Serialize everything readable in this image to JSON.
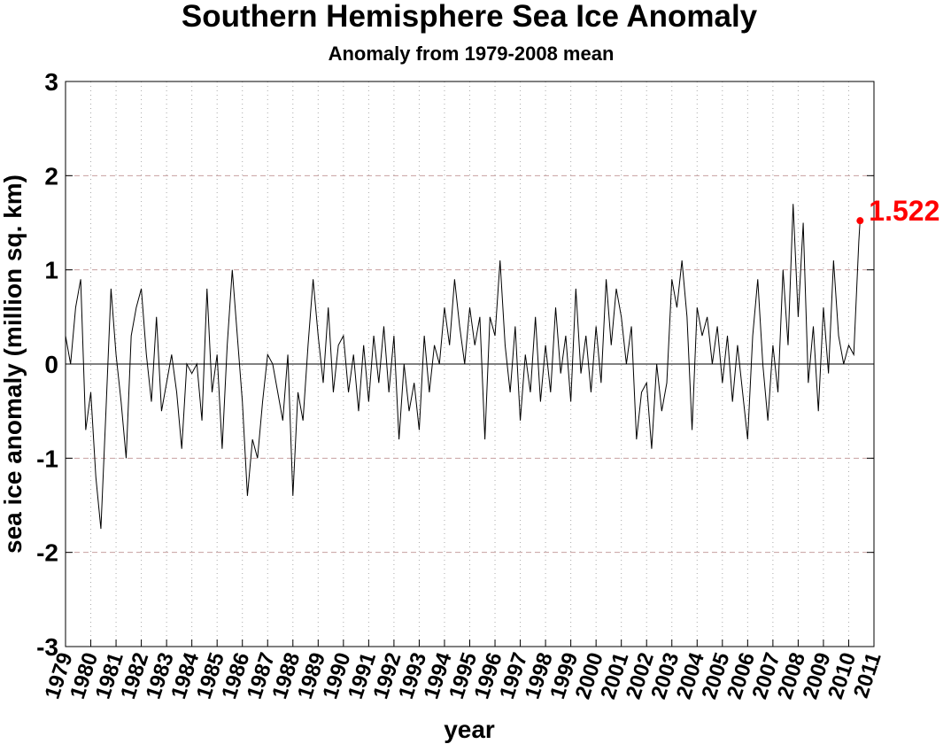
{
  "chart_data": {
    "type": "line",
    "title": "Southern Hemisphere Sea Ice Anomaly",
    "subtitle": "Anomaly from 1979-2008 mean",
    "xlabel": "year",
    "ylabel": "sea ice anomaly (million sq. km)",
    "xlim": [
      1979,
      2011
    ],
    "xticks": [
      1979,
      1980,
      1981,
      1982,
      1983,
      1984,
      1985,
      1986,
      1987,
      1988,
      1989,
      1990,
      1991,
      1992,
      1993,
      1994,
      1995,
      1996,
      1997,
      1998,
      1999,
      2000,
      2001,
      2002,
      2003,
      2004,
      2005,
      2006,
      2007,
      2008,
      2009,
      2010,
      2011
    ],
    "ylim": [
      -3,
      3
    ],
    "yticks": [
      -3,
      -2,
      -1,
      0,
      1,
      2,
      3
    ],
    "grid": true,
    "color": "#000000",
    "annotation_color": "#ff0000",
    "annotation": "1.522",
    "x": [
      1979.0,
      1979.2,
      1979.4,
      1979.6,
      1979.8,
      1980.0,
      1980.2,
      1980.4,
      1980.6,
      1980.8,
      1981.0,
      1981.2,
      1981.4,
      1981.6,
      1981.8,
      1982.0,
      1982.2,
      1982.4,
      1982.6,
      1982.8,
      1983.0,
      1983.2,
      1983.4,
      1983.6,
      1983.8,
      1984.0,
      1984.2,
      1984.4,
      1984.6,
      1984.8,
      1985.0,
      1985.2,
      1985.4,
      1985.6,
      1985.8,
      1986.0,
      1986.2,
      1986.4,
      1986.6,
      1986.8,
      1987.0,
      1987.2,
      1987.4,
      1987.6,
      1987.8,
      1988.0,
      1988.2,
      1988.4,
      1988.6,
      1988.8,
      1989.0,
      1989.2,
      1989.4,
      1989.6,
      1989.8,
      1990.0,
      1990.2,
      1990.4,
      1990.6,
      1990.8,
      1991.0,
      1991.2,
      1991.4,
      1991.6,
      1991.8,
      1992.0,
      1992.2,
      1992.4,
      1992.6,
      1992.8,
      1993.0,
      1993.2,
      1993.4,
      1993.6,
      1993.8,
      1994.0,
      1994.2,
      1994.4,
      1994.6,
      1994.8,
      1995.0,
      1995.2,
      1995.4,
      1995.6,
      1995.8,
      1996.0,
      1996.2,
      1996.4,
      1996.6,
      1996.8,
      1997.0,
      1997.2,
      1997.4,
      1997.6,
      1997.8,
      1998.0,
      1998.2,
      1998.4,
      1998.6,
      1998.8,
      1999.0,
      1999.2,
      1999.4,
      1999.6,
      1999.8,
      2000.0,
      2000.2,
      2000.4,
      2000.6,
      2000.8,
      2001.0,
      2001.2,
      2001.4,
      2001.6,
      2001.8,
      2002.0,
      2002.2,
      2002.4,
      2002.6,
      2002.8,
      2003.0,
      2003.2,
      2003.4,
      2003.6,
      2003.8,
      2004.0,
      2004.2,
      2004.4,
      2004.6,
      2004.8,
      2005.0,
      2005.2,
      2005.4,
      2005.6,
      2005.8,
      2006.0,
      2006.2,
      2006.4,
      2006.6,
      2006.8,
      2007.0,
      2007.2,
      2007.4,
      2007.6,
      2007.8,
      2008.0,
      2008.2,
      2008.4,
      2008.6,
      2008.8,
      2009.0,
      2009.2,
      2009.4,
      2009.6,
      2009.8,
      2010.0,
      2010.2,
      2010.4,
      2010.45
    ],
    "values": [
      0.3,
      0.0,
      0.6,
      0.9,
      -0.7,
      -0.3,
      -1.2,
      -1.75,
      -0.5,
      0.8,
      0.1,
      -0.4,
      -1.0,
      0.3,
      0.6,
      0.8,
      0.1,
      -0.4,
      0.5,
      -0.5,
      -0.2,
      0.1,
      -0.3,
      -0.9,
      0.0,
      -0.1,
      0.0,
      -0.6,
      0.8,
      -0.3,
      0.1,
      -0.9,
      0.2,
      1.0,
      0.3,
      -0.4,
      -1.4,
      -0.8,
      -1.0,
      -0.4,
      0.1,
      0.0,
      -0.3,
      -0.6,
      0.1,
      -1.4,
      -0.3,
      -0.6,
      0.2,
      0.9,
      0.3,
      -0.2,
      0.6,
      -0.3,
      0.2,
      0.3,
      -0.3,
      0.1,
      -0.5,
      0.2,
      -0.4,
      0.3,
      -0.2,
      0.4,
      -0.3,
      0.3,
      -0.8,
      0.0,
      -0.5,
      -0.2,
      -0.7,
      0.3,
      -0.3,
      0.2,
      0.0,
      0.6,
      0.2,
      0.9,
      0.4,
      0.0,
      0.6,
      0.2,
      0.5,
      -0.8,
      0.5,
      0.3,
      1.1,
      0.2,
      -0.3,
      0.4,
      -0.6,
      0.1,
      -0.3,
      0.5,
      -0.4,
      0.2,
      -0.3,
      0.6,
      -0.1,
      0.3,
      -0.4,
      0.8,
      -0.1,
      0.3,
      -0.3,
      0.4,
      -0.2,
      0.9,
      0.2,
      0.8,
      0.5,
      0.0,
      0.4,
      -0.8,
      -0.3,
      -0.2,
      -0.9,
      0.0,
      -0.5,
      -0.2,
      0.9,
      0.6,
      1.1,
      0.5,
      -0.7,
      0.6,
      0.3,
      0.5,
      0.0,
      0.4,
      -0.2,
      0.3,
      -0.4,
      0.2,
      -0.3,
      -0.8,
      0.3,
      0.9,
      0.0,
      -0.6,
      0.2,
      -0.3,
      1.0,
      0.2,
      1.7,
      0.5,
      1.5,
      -0.2,
      0.4,
      -0.5,
      0.6,
      -0.1,
      1.1,
      0.3,
      0.0,
      0.2,
      0.1,
      1.3,
      1.522
    ]
  }
}
